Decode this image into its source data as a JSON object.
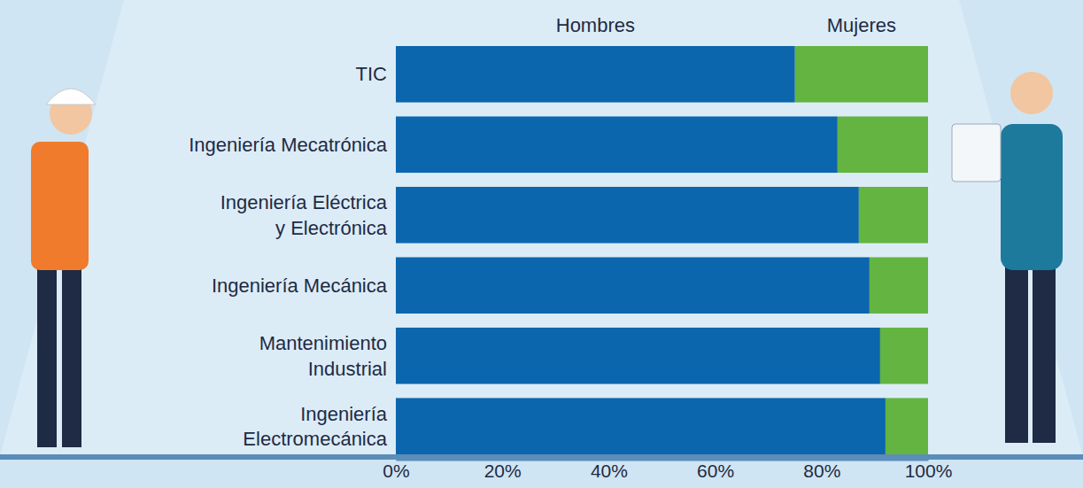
{
  "chart_data": {
    "type": "bar",
    "orientation": "horizontal",
    "stacked": true,
    "categories": [
      "TIC",
      "Ingeniería Mecatrónica",
      "Ingeniería Eléctrica\ny Electrónica",
      "Ingeniería Mecánica",
      "Mantenimiento\nIndustrial",
      "Ingeniería\nElectromecánica"
    ],
    "series": [
      {
        "name": "Hombres",
        "color": "#0b66ae",
        "values": [
          75,
          83,
          87,
          89,
          91,
          92
        ]
      },
      {
        "name": "Mujeres",
        "color": "#63b440",
        "values": [
          25,
          17,
          13,
          11,
          9,
          8
        ]
      }
    ],
    "xlim": [
      0,
      100
    ],
    "xticks": [
      {
        "value": 0,
        "label": "0%"
      },
      {
        "value": 20,
        "label": "20%"
      },
      {
        "value": 40,
        "label": "40%"
      },
      {
        "value": 60,
        "label": "60%"
      },
      {
        "value": 80,
        "label": "80%"
      },
      {
        "value": 100,
        "label": "100%"
      }
    ],
    "grid": false,
    "legend": "top"
  }
}
